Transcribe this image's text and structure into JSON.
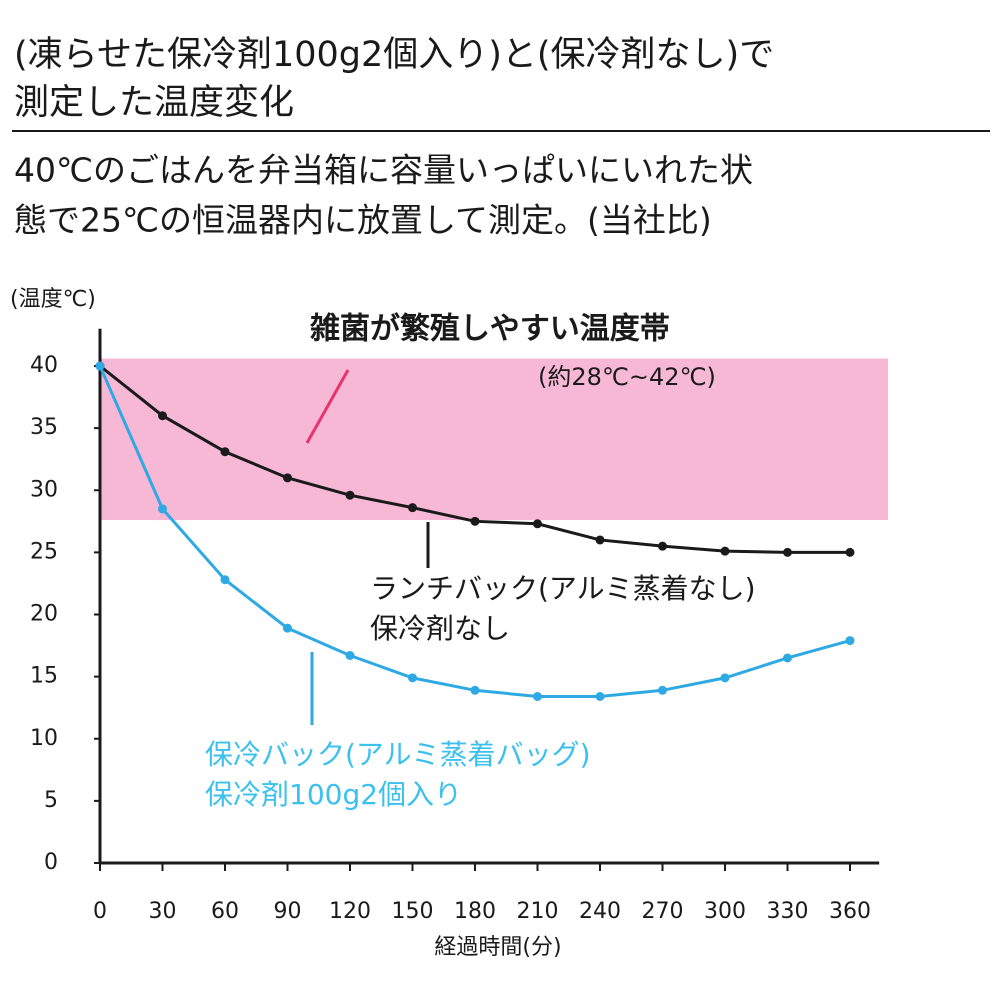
{
  "chart_data": {
    "type": "line",
    "title": [
      "(凍らせた保冷剤100g2個入り)と(保冷剤なし)で",
      "測定した温度変化"
    ],
    "subtitle": [
      "40℃のごはんを弁当箱に容量いっぱいにいれた状",
      "態で25℃の恒温器内に放置して測定。(当社比)"
    ],
    "y_label": "(温度℃)",
    "x_label": "経過時間(分)",
    "x": [
      0,
      30,
      60,
      90,
      120,
      150,
      180,
      210,
      240,
      270,
      300,
      330,
      360
    ],
    "series": [
      {
        "name": "ランチバック(アルミ蒸着なし)",
        "note": "保冷剤なし",
        "color": "#1a1a1a",
        "values": [
          40,
          36,
          33.1,
          31,
          29.6,
          28.6,
          27.5,
          27.3,
          26,
          25.5,
          25.1,
          25,
          25
        ]
      },
      {
        "name": "保冷バック(アルミ蒸着バッグ)",
        "note": "保冷剤100g2個入り",
        "color": "#2ea9e3",
        "values": [
          40,
          28.5,
          22.8,
          18.9,
          16.7,
          14.9,
          13.9,
          13.4,
          13.4,
          13.9,
          14.9,
          16.5,
          17.9
        ]
      }
    ],
    "band": {
      "label": "雑菌が繁殖しやすい温度帯",
      "sublabel": "(約28℃~42℃)",
      "range": [
        27.6,
        40.6
      ],
      "color": "#f7b8d6"
    },
    "xlim": [
      0,
      374
    ],
    "ylim": [
      0,
      43
    ],
    "xticks": [
      0,
      30,
      60,
      90,
      120,
      150,
      180,
      210,
      240,
      270,
      300,
      330,
      360
    ],
    "yticks": [
      0,
      5,
      10,
      15,
      20,
      25,
      30,
      35,
      40
    ]
  }
}
